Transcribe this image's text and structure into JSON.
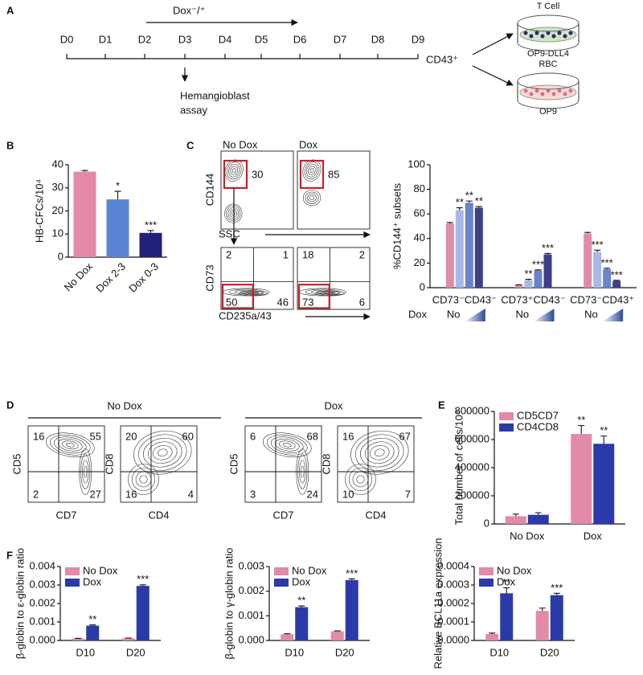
{
  "panel_labels": [
    "A",
    "B",
    "C",
    "D",
    "E",
    "F"
  ],
  "timeline": {
    "treatment": "Dox⁻/⁺",
    "days": [
      "D0",
      "D1",
      "D2",
      "D3",
      "D4",
      "D5",
      "D6",
      "D7",
      "D8",
      "D9"
    ],
    "assay": [
      "Hemangioblast",
      "assay"
    ],
    "sorted": "CD43⁺",
    "cultures": [
      {
        "top": "T Cell",
        "bottom": "OP9-DLL4"
      },
      {
        "top": "RBC",
        "bottom": "OP9"
      }
    ]
  },
  "flow_c": {
    "conditions": [
      {
        "title": "No Dox",
        "gate": 30,
        "quadrants": [
          2,
          1,
          50,
          46
        ]
      },
      {
        "title": "Dox",
        "gate": 85,
        "quadrants": [
          18,
          2,
          73,
          6
        ]
      }
    ],
    "top_axes": {
      "y": "CD144",
      "x": "SSC"
    },
    "bottom_axes": {
      "y": "CD73",
      "x": "CD235a/43"
    }
  },
  "flow_d": {
    "conditions": [
      {
        "title": "No Dox",
        "plots": [
          {
            "y": "CD5",
            "x": "CD7",
            "quadrants": [
              16,
              55,
              2,
              27
            ]
          },
          {
            "y": "CD8",
            "x": "CD4",
            "quadrants": [
              20,
              60,
              16,
              4
            ]
          }
        ]
      },
      {
        "title": "Dox",
        "plots": [
          {
            "y": "CD5",
            "x": "CD7",
            "quadrants": [
              6,
              68,
              3,
              24
            ]
          },
          {
            "y": "CD8",
            "x": "CD4",
            "quadrants": [
              16,
              67,
              10,
              7
            ]
          }
        ]
      }
    ]
  },
  "chart_data": [
    {
      "type": "bar",
      "ylabel": "HB-CFCs/10⁴",
      "categories": [
        "No Dox",
        "Dox 2-3",
        "Dox 0-3"
      ],
      "values": [
        37,
        25,
        10.5
      ],
      "errors": [
        0.5,
        3.5,
        1
      ],
      "annotations": [
        null,
        "*",
        "***"
      ],
      "colors": [
        "#e28aa6",
        "#5b84d4",
        "#22227a"
      ],
      "ylim": [
        0,
        40
      ],
      "yticks": [
        0,
        10,
        20,
        30,
        40
      ]
    },
    {
      "type": "bar",
      "ylabel": "%CD144⁺ subsets",
      "categories": [
        "CD73⁻CD43⁻",
        "CD73⁺CD43⁻",
        "CD73⁻CD43⁺"
      ],
      "series": [
        {
          "color": "#e28aa6",
          "values": [
            52,
            2,
            44
          ],
          "errors": [
            1,
            0.3,
            1
          ],
          "annotations": [
            null,
            null,
            null
          ]
        },
        {
          "color": "#a8b8e6",
          "values": [
            63,
            6,
            29
          ],
          "errors": [
            2,
            0.8,
            1.5
          ],
          "annotations": [
            "**",
            "**",
            "***"
          ]
        },
        {
          "color": "#6b82cc",
          "values": [
            69,
            14,
            15
          ],
          "errors": [
            1.5,
            0.5,
            0.8
          ],
          "annotations": [
            "**",
            "***",
            "***"
          ]
        },
        {
          "color": "#3c3e86",
          "values": [
            65,
            27,
            5.5
          ],
          "errors": [
            1,
            0.8,
            0.5
          ],
          "annotations": [
            "**",
            "***",
            "***"
          ]
        }
      ],
      "gradient": {
        "title": "Dox",
        "low": "No"
      },
      "ylim": [
        0,
        100
      ],
      "yticks": [
        0,
        20,
        40,
        60,
        80,
        100
      ]
    },
    {
      "type": "bar",
      "ylabel": "Total number of cells/10⁴",
      "categories": [
        "No Dox",
        "Dox"
      ],
      "series": [
        {
          "name": "CD5CD7",
          "color": "#e28aa6",
          "values": [
            55000,
            640000
          ],
          "errors": [
            15000,
            60000
          ],
          "annotations": [
            null,
            "**"
          ]
        },
        {
          "name": "CD4CD8",
          "color": "#2a3aa8",
          "values": [
            65000,
            570000
          ],
          "errors": [
            15000,
            55000
          ],
          "annotations": [
            null,
            "**"
          ]
        }
      ],
      "legend": "upper left",
      "ylim": [
        0,
        800000
      ],
      "yticks": [
        0,
        200000,
        400000,
        600000,
        800000
      ]
    },
    {
      "type": "bar",
      "ylabel": "β-globin to ε-globin ratio",
      "categories": [
        "D10",
        "D20"
      ],
      "series": [
        {
          "name": "No Dox",
          "color": "#e28aa6",
          "values": [
            0.0001,
            0.00012
          ],
          "errors": [
            1e-05,
            1e-05
          ],
          "annotations": [
            null,
            null
          ]
        },
        {
          "name": "Dox",
          "color": "#2a3aa8",
          "values": [
            0.0008,
            0.00295
          ],
          "errors": [
            4e-05,
            6e-05
          ],
          "annotations": [
            "**",
            "***"
          ]
        }
      ],
      "legend": "upper left",
      "ylim": [
        0,
        0.004
      ],
      "yticks": [
        {
          "value": 0,
          "label": "0.000"
        },
        {
          "value": 0.001,
          "label": "0.001"
        },
        {
          "value": 0.002,
          "label": "0.002"
        },
        {
          "value": 0.003,
          "label": "0.003"
        },
        {
          "value": 0.004,
          "label": "0.004"
        }
      ]
    },
    {
      "type": "bar",
      "ylabel": "β-globin to γ-globin ratio",
      "categories": [
        "D10",
        "D20"
      ],
      "series": [
        {
          "name": "No Dox",
          "color": "#e28aa6",
          "values": [
            0.00025,
            0.00037
          ],
          "errors": [
            2e-05,
            2e-05
          ],
          "annotations": [
            null,
            null
          ]
        },
        {
          "name": "Dox",
          "color": "#2a3aa8",
          "values": [
            0.00135,
            0.00245
          ],
          "errors": [
            5e-05,
            5e-05
          ],
          "annotations": [
            "**",
            "***"
          ]
        }
      ],
      "legend": "upper left",
      "ylim": [
        0,
        0.003
      ],
      "yticks": [
        {
          "value": 0,
          "label": "0.000"
        },
        {
          "value": 0.001,
          "label": "0.001"
        },
        {
          "value": 0.002,
          "label": "0.002"
        },
        {
          "value": 0.003,
          "label": "0.003"
        }
      ]
    },
    {
      "type": "bar",
      "ylabel": "Relative BCL11a expression",
      "categories": [
        "D10",
        "D20"
      ],
      "series": [
        {
          "name": "No Dox",
          "color": "#e28aa6",
          "values": [
            3.5e-05,
            0.00016
          ],
          "errors": [
            5e-06,
            1.5e-05
          ],
          "annotations": [
            null,
            null
          ]
        },
        {
          "name": "Dox",
          "color": "#2a3aa8",
          "values": [
            0.000255,
            0.000245
          ],
          "errors": [
            3e-05,
            1e-05
          ],
          "annotations": [
            "**",
            "***"
          ]
        }
      ],
      "legend": "upper left",
      "ylim": [
        0,
        0.0004
      ],
      "yticks": [
        {
          "value": 0,
          "label": "0.0000"
        },
        {
          "value": 0.0001,
          "label": "0.0001"
        },
        {
          "value": 0.0002,
          "label": "0.0002"
        },
        {
          "value": 0.0003,
          "label": "0.0003"
        },
        {
          "value": 0.0004,
          "label": "0.0004"
        }
      ]
    }
  ]
}
